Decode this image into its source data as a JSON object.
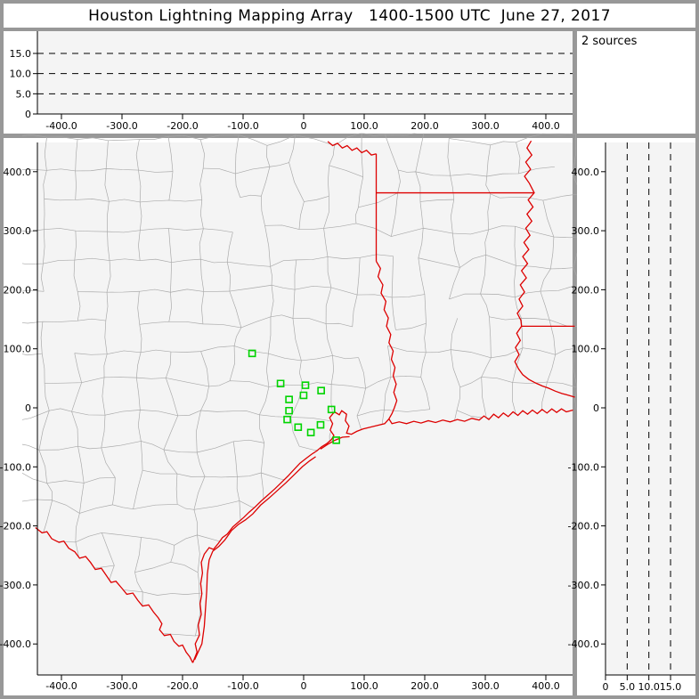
{
  "title": "Houston Lightning Mapping Array   1400-1500 UTC  June 27, 2017",
  "sources_panel": {
    "label": "2 sources"
  },
  "colors": {
    "frame_gray": "#989898",
    "panel_white": "#ffffff",
    "plot_bg": "#f4f4f4",
    "axis_black": "#000000",
    "county_gray": "#a9a9a9",
    "border_red": "#dd0000",
    "station_green": "#00d400"
  },
  "chart_data": [
    {
      "id": "top-ew-alt",
      "type": "scatter",
      "description": "altitude (km) vs east-west distance (km) panel, no sources plotted",
      "x_range": [
        -440,
        444
      ],
      "y_range": [
        0,
        20.5
      ],
      "x_ticks": [
        -400,
        -300,
        -200,
        -100,
        0,
        100,
        200,
        300,
        400
      ],
      "x_tick_labels": [
        "-400.0",
        "-300.0",
        "-200.0",
        "-100.0",
        "0",
        "100.0",
        "200.0",
        "300.0",
        "400.0"
      ],
      "y_ticks": [
        0,
        5,
        10,
        15
      ],
      "y_tick_labels": [
        "0",
        "5.0",
        "10.0",
        "15.0"
      ],
      "gridlines_y": [
        5,
        10,
        15
      ],
      "grid_style": "dashed",
      "legend": "none",
      "series": []
    },
    {
      "id": "sources-count",
      "type": "text",
      "text": "2 sources"
    },
    {
      "id": "map-plan-view",
      "type": "scatter",
      "description": "plan view map centered on Houston with county borders (gray), state borders / coastline / rivers (red), and LMA station markers (green squares)",
      "x_range": [
        -440,
        444
      ],
      "y_range": [
        -452,
        449
      ],
      "x_ticks": [
        -400,
        -300,
        -200,
        -100,
        0,
        100,
        200,
        300,
        400
      ],
      "x_tick_labels": [
        "-400.0",
        "-300.0",
        "-200.0",
        "-100.0",
        "0",
        "100.0",
        "200.0",
        "300.0",
        "400.0"
      ],
      "y_ticks": [
        400,
        300,
        200,
        100,
        0,
        -100,
        -200,
        -300,
        -400
      ],
      "y_tick_labels": [
        "400.0",
        "300.0",
        "200.0",
        "100.0",
        "0",
        "-100.0",
        "-200.0",
        "-300.0",
        "-400.0"
      ],
      "map_features": {
        "county_borders_color": "#a9a9a9",
        "state_borders_coastline_rivers_color": "#dd0000"
      },
      "series": [
        {
          "name": "lma-stations",
          "marker": "open-square",
          "color": "#00d400",
          "points_km": [
            [
              -85,
              92
            ],
            [
              -38,
              41
            ],
            [
              3,
              38
            ],
            [
              29,
              29
            ],
            [
              0,
              21
            ],
            [
              -24,
              14
            ],
            [
              -24,
              -5
            ],
            [
              46,
              -3
            ],
            [
              -27,
              -20
            ],
            [
              28,
              -29
            ],
            [
              -9,
              -33
            ],
            [
              12,
              -42
            ],
            [
              54,
              -55
            ]
          ]
        }
      ]
    },
    {
      "id": "right-ns-alt",
      "type": "scatter",
      "description": "north-south distance (km) vs altitude (km) panel, no sources plotted",
      "x_range": [
        0,
        20.7
      ],
      "y_range": [
        -452,
        449
      ],
      "x_ticks": [
        0,
        5,
        10,
        15
      ],
      "x_tick_labels": [
        "0",
        "5.0",
        "10.0",
        "15.0"
      ],
      "y_ticks": [
        400,
        300,
        200,
        100,
        0,
        -100,
        -200,
        -300,
        -400
      ],
      "y_tick_labels": [
        "400.0",
        "300.0",
        "200.0",
        "100.0",
        "0",
        "-100.0",
        "-200.0",
        "-300.0",
        "-400.0"
      ],
      "gridlines_x": [
        5,
        10,
        15
      ],
      "grid_style": "dashed",
      "series": []
    }
  ]
}
